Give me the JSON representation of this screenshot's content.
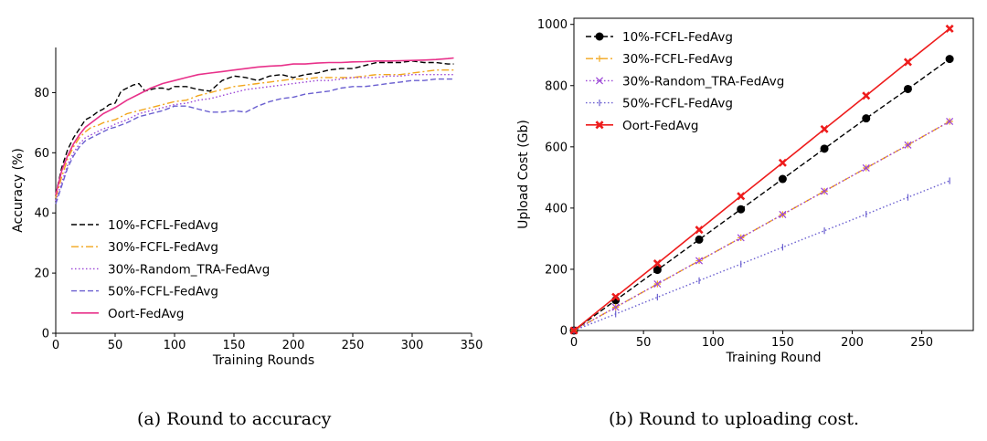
{
  "captions": {
    "a": "(a) Round to accuracy",
    "b": "(b) Round to uploading cost."
  },
  "chart_data": [
    {
      "type": "line",
      "xlabel": "Training Rounds",
      "ylabel": "Accuracy (%)",
      "xlim": [
        0,
        350
      ],
      "ylim": [
        0,
        95
      ],
      "xticks": [
        0,
        50,
        100,
        150,
        200,
        250,
        300,
        350
      ],
      "xtick_labels": [
        "0",
        "50",
        "100",
        "150",
        "200",
        "250",
        "300",
        "350"
      ],
      "yticks": [
        0,
        20,
        40,
        60,
        80
      ],
      "yticks_labels": [
        "0",
        "20",
        "40",
        "60",
        "80"
      ],
      "grid": false,
      "legend_position": "lower-left",
      "series": [
        {
          "name": "10%-FCFL-FedAvg",
          "color": "#000000",
          "style": "dashed",
          "x": [
            0,
            5,
            10,
            15,
            20,
            25,
            30,
            35,
            40,
            45,
            50,
            55,
            60,
            65,
            70,
            75,
            80,
            85,
            90,
            95,
            100,
            110,
            120,
            130,
            140,
            150,
            160,
            170,
            180,
            190,
            200,
            210,
            220,
            230,
            240,
            250,
            260,
            270,
            280,
            290,
            300,
            310,
            320,
            330,
            335
          ],
          "y": [
            46,
            55,
            61,
            65,
            68,
            71,
            72,
            73.5,
            74.5,
            76,
            76.5,
            80.5,
            81.5,
            82.5,
            83,
            80.5,
            81,
            81.5,
            81.5,
            81,
            82,
            82,
            81,
            80.5,
            84,
            85.5,
            85,
            84,
            85.5,
            86,
            85,
            86,
            86.5,
            87.5,
            88,
            88,
            89,
            90,
            90,
            90,
            90.5,
            90,
            90,
            89.5,
            89.5
          ]
        },
        {
          "name": "30%-FCFL-FedAvg",
          "color": "#f2a61c",
          "style": "dashdot",
          "x": [
            0,
            5,
            10,
            15,
            20,
            25,
            30,
            35,
            40,
            45,
            50,
            55,
            60,
            65,
            70,
            75,
            80,
            90,
            100,
            110,
            120,
            130,
            140,
            150,
            160,
            170,
            180,
            190,
            200,
            210,
            220,
            230,
            240,
            250,
            260,
            270,
            280,
            290,
            300,
            310,
            320,
            330,
            335
          ],
          "y": [
            45,
            52,
            58,
            62,
            65,
            67,
            68.5,
            69,
            70,
            70.5,
            71,
            72,
            73,
            73.5,
            74,
            74.5,
            75,
            76,
            77,
            77.5,
            79,
            80,
            81,
            82,
            82.5,
            83,
            83.5,
            84,
            84.5,
            84.5,
            85,
            85,
            85,
            85,
            85.5,
            86,
            86,
            86,
            86.5,
            87,
            87.5,
            87.5,
            87.5
          ]
        },
        {
          "name": "30%-Random_TRA-FedAvg",
          "color": "#9b45d6",
          "style": "dotted",
          "x": [
            0,
            5,
            10,
            15,
            20,
            25,
            30,
            35,
            40,
            45,
            50,
            60,
            70,
            80,
            90,
            100,
            110,
            120,
            130,
            140,
            150,
            160,
            170,
            180,
            190,
            200,
            210,
            220,
            230,
            240,
            250,
            260,
            270,
            280,
            290,
            300,
            310,
            320,
            330,
            335
          ],
          "y": [
            44,
            50,
            56,
            60,
            63,
            65,
            66,
            67,
            68,
            68.5,
            69.5,
            71,
            73,
            74,
            75,
            76,
            76.5,
            77.5,
            78,
            79,
            80,
            81,
            81.5,
            82,
            82.5,
            83,
            83.5,
            84,
            84,
            84.5,
            85,
            85,
            85,
            85.5,
            85.5,
            86,
            86,
            86,
            86,
            86
          ]
        },
        {
          "name": "50%-FCFL-FedAvg",
          "color": "#6a5fd0",
          "style": "dashed",
          "x": [
            0,
            5,
            10,
            15,
            20,
            25,
            30,
            35,
            40,
            45,
            50,
            60,
            70,
            80,
            90,
            100,
            110,
            120,
            130,
            140,
            150,
            160,
            170,
            180,
            190,
            200,
            210,
            220,
            230,
            240,
            250,
            260,
            270,
            280,
            290,
            300,
            310,
            320,
            330,
            335
          ],
          "y": [
            43,
            49,
            55,
            59,
            62,
            64,
            65,
            66,
            67,
            68,
            68.5,
            70,
            72,
            73,
            74,
            75.5,
            75.5,
            74.5,
            73.5,
            73.5,
            74,
            73.5,
            75.5,
            77,
            78,
            78.5,
            79.5,
            80,
            80.5,
            81.5,
            82,
            82,
            82.5,
            83,
            83.5,
            84,
            84,
            84.5,
            84.5,
            84.5
          ]
        },
        {
          "name": "Oort-FedAvg",
          "color": "#e8318a",
          "style": "solid",
          "x": [
            0,
            5,
            10,
            15,
            20,
            25,
            30,
            35,
            40,
            45,
            50,
            60,
            70,
            80,
            90,
            100,
            110,
            120,
            130,
            140,
            150,
            160,
            170,
            180,
            190,
            200,
            210,
            220,
            230,
            240,
            250,
            260,
            270,
            280,
            290,
            300,
            310,
            320,
            330,
            335
          ],
          "y": [
            46,
            54,
            59,
            63,
            66,
            68.5,
            70,
            71.5,
            73,
            74,
            75,
            77.5,
            79.5,
            81.5,
            83,
            84,
            85,
            86,
            86.5,
            87,
            87.5,
            88,
            88.5,
            88.8,
            89,
            89.5,
            89.5,
            89.8,
            90,
            90,
            90.2,
            90.3,
            90.5,
            90.5,
            90.6,
            90.7,
            90.8,
            91,
            91.3,
            91.5
          ]
        }
      ]
    },
    {
      "type": "line",
      "xlabel": "Training Round",
      "ylabel": "Upload Cost (Gb)",
      "xlim": [
        0,
        287
      ],
      "ylim": [
        0,
        1020
      ],
      "xticks": [
        0,
        50,
        100,
        150,
        200,
        250
      ],
      "xtick_labels": [
        "0",
        "50",
        "100",
        "150",
        "200",
        "250"
      ],
      "yticks": [
        0,
        200,
        400,
        600,
        800,
        1000
      ],
      "yticks_labels": [
        "0",
        "200",
        "400",
        "600",
        "800",
        "1000"
      ],
      "grid": false,
      "legend_position": "top-left",
      "series": [
        {
          "name": "10%-FCFL-FedAvg",
          "color": "#000000",
          "style": "dashed",
          "marker": "circle",
          "x": [
            0,
            30,
            60,
            90,
            120,
            150,
            180,
            210,
            240,
            270
          ],
          "y": [
            0,
            99,
            198,
            297,
            396,
            495,
            594,
            693,
            789,
            887
          ]
        },
        {
          "name": "30%-FCFL-FedAvg",
          "color": "#f2a61c",
          "style": "dashdot",
          "marker": "plus",
          "x": [
            0,
            30,
            60,
            90,
            120,
            150,
            180,
            210,
            240,
            270
          ],
          "y": [
            0,
            76,
            152,
            228,
            303,
            379,
            455,
            531,
            606,
            683
          ]
        },
        {
          "name": "30%-Random_TRA-FedAvg",
          "color": "#9b45d6",
          "style": "dotted",
          "marker": "x",
          "x": [
            0,
            30,
            60,
            90,
            120,
            150,
            180,
            210,
            240,
            270
          ],
          "y": [
            0,
            76,
            152,
            228,
            303,
            379,
            455,
            531,
            606,
            683
          ]
        },
        {
          "name": "50%-FCFL-FedAvg",
          "color": "#6a5fd0",
          "style": "dotted",
          "marker": "vline",
          "x": [
            0,
            30,
            60,
            90,
            120,
            150,
            180,
            210,
            240,
            270
          ],
          "y": [
            0,
            54,
            109,
            163,
            217,
            272,
            326,
            380,
            435,
            489
          ]
        },
        {
          "name": "Oort-FedAvg",
          "color": "#ee1c1c",
          "style": "solid",
          "marker": "x-bold",
          "x": [
            0,
            30,
            60,
            90,
            120,
            150,
            180,
            210,
            240,
            270
          ],
          "y": [
            0,
            110,
            219,
            329,
            439,
            548,
            658,
            767,
            877,
            986
          ]
        }
      ]
    }
  ]
}
